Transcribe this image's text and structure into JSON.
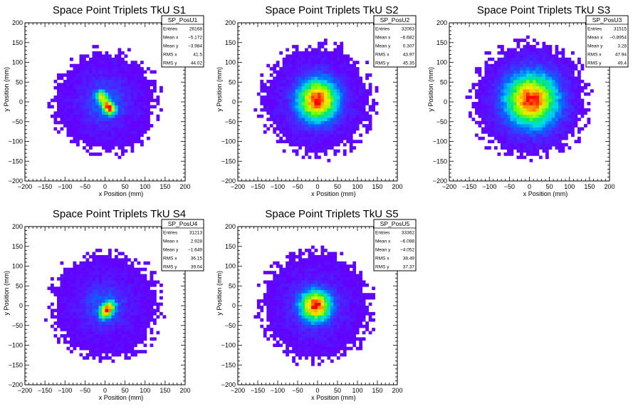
{
  "chart_data": [
    {
      "type": "heatmap",
      "title": "Space Point Triplets TkU S1",
      "xlabel": "x Position (mm)",
      "ylabel": "y Position (mm)",
      "xlim": [
        -200,
        200
      ],
      "ylim": [
        -200,
        200
      ],
      "x_ticks": [
        "−200",
        "−150",
        "−100",
        "−50",
        "0",
        "50",
        "100",
        "150",
        "200"
      ],
      "y_ticks": [
        "200",
        "150",
        "100",
        "50",
        "0",
        "−50",
        "−100",
        "−150",
        "−200"
      ],
      "stats": {
        "name": "SP_PosU1",
        "rows": [
          {
            "label": "Entries",
            "value": "26168"
          },
          {
            "label": "Mean x",
            "value": "−5.172"
          },
          {
            "label": "Mean y",
            "value": "−3.984"
          },
          {
            "label": "RMS x",
            "value": "41.5"
          },
          {
            "label": "RMS y",
            "value": "44.02"
          }
        ]
      },
      "profile": {
        "cx": 0,
        "cy": 0,
        "support_r": 135,
        "peaks": [
          [
            10,
            -15,
            16,
            13,
            1.0
          ],
          [
            -10,
            15,
            14,
            12,
            0.7
          ]
        ],
        "halo_sigma": 45,
        "angle": -40
      }
    },
    {
      "type": "heatmap",
      "title": "Space Point Triplets TkU S2",
      "xlabel": "x Position (mm)",
      "ylabel": "y Position (mm)",
      "xlim": [
        -200,
        200
      ],
      "ylim": [
        -200,
        200
      ],
      "x_ticks": [
        "−200",
        "−150",
        "−100",
        "−50",
        "0",
        "50",
        "100",
        "150",
        "200"
      ],
      "y_ticks": [
        "200",
        "150",
        "100",
        "50",
        "0",
        "−50",
        "−100",
        "−150",
        "−200"
      ],
      "stats": {
        "name": "SP_PosU2",
        "rows": [
          {
            "label": "Entries",
            "value": "32063"
          },
          {
            "label": "Mean x",
            "value": "−6.682"
          },
          {
            "label": "Mean y",
            "value": "0.307"
          },
          {
            "label": "RMS x",
            "value": "43.97"
          },
          {
            "label": "RMS y",
            "value": "45.35"
          }
        ]
      },
      "profile": {
        "cx": 0,
        "cy": 5,
        "support_r": 145,
        "peaks": [
          [
            0,
            5,
            38,
            40,
            1.0
          ]
        ],
        "halo_sigma": 55,
        "angle": 0
      }
    },
    {
      "type": "heatmap",
      "title": "Space Point Triplets TkU S3",
      "xlabel": "x Position (mm)",
      "ylabel": "y Position (mm)",
      "xlim": [
        -200,
        200
      ],
      "ylim": [
        -200,
        200
      ],
      "x_ticks": [
        "−200",
        "−150",
        "−100",
        "−50",
        "0",
        "50",
        "100",
        "150",
        "200"
      ],
      "y_ticks": [
        "200",
        "150",
        "100",
        "50",
        "0",
        "−50",
        "−100",
        "−150",
        "−200"
      ],
      "stats": {
        "name": "SP_PosU3",
        "rows": [
          {
            "label": "Entries",
            "value": "31515"
          },
          {
            "label": "Mean x",
            "value": "−0.8954"
          },
          {
            "label": "Mean y",
            "value": "3.28"
          },
          {
            "label": "RMS x",
            "value": "47.94"
          },
          {
            "label": "RMS y",
            "value": "49.4"
          }
        ]
      },
      "profile": {
        "cx": 0,
        "cy": 5,
        "support_r": 150,
        "peaks": [
          [
            5,
            5,
            48,
            50,
            1.0
          ]
        ],
        "halo_sigma": 60,
        "angle": 0
      }
    },
    {
      "type": "heatmap",
      "title": "Space Point Triplets TkU S4",
      "xlabel": "x Position (mm)",
      "ylabel": "y Position (mm)",
      "xlim": [
        -200,
        200
      ],
      "ylim": [
        -200,
        200
      ],
      "x_ticks": [
        "−200",
        "−150",
        "−100",
        "−50",
        "0",
        "50",
        "100",
        "150",
        "200"
      ],
      "y_ticks": [
        "200",
        "150",
        "100",
        "50",
        "0",
        "−50",
        "−100",
        "−150",
        "−200"
      ],
      "stats": {
        "name": "SP_PosU4",
        "rows": [
          {
            "label": "Entries",
            "value": "31213"
          },
          {
            "label": "Mean x",
            "value": "2.928"
          },
          {
            "label": "Mean y",
            "value": "−1.649"
          },
          {
            "label": "RMS x",
            "value": "36.15"
          },
          {
            "label": "RMS y",
            "value": "39.04"
          }
        ]
      },
      "profile": {
        "cx": 0,
        "cy": 0,
        "support_r": 140,
        "peaks": [
          [
            5,
            -10,
            14,
            20,
            1.0
          ]
        ],
        "halo_sigma": 42,
        "angle": -35
      }
    },
    {
      "type": "heatmap",
      "title": "Space Point Triplets TkU S5",
      "xlabel": "x Position (mm)",
      "ylabel": "y Position (mm)",
      "xlim": [
        -200,
        200
      ],
      "ylim": [
        -200,
        200
      ],
      "x_ticks": [
        "−200",
        "−150",
        "−100",
        "−50",
        "0",
        "50",
        "100",
        "150",
        "200"
      ],
      "y_ticks": [
        "200",
        "150",
        "100",
        "50",
        "0",
        "−50",
        "−100",
        "−150",
        "−200"
      ],
      "stats": {
        "name": "SP_PosU5",
        "rows": [
          {
            "label": "Entries",
            "value": "33362"
          },
          {
            "label": "Mean x",
            "value": "−6.098"
          },
          {
            "label": "Mean y",
            "value": "−4.052"
          },
          {
            "label": "RMS x",
            "value": "38.49"
          },
          {
            "label": "RMS y",
            "value": "37.37"
          }
        ]
      },
      "profile": {
        "cx": -5,
        "cy": 0,
        "support_r": 145,
        "peaks": [
          [
            -5,
            0,
            30,
            30,
            1.0
          ]
        ],
        "halo_sigma": 48,
        "angle": 0
      }
    }
  ]
}
